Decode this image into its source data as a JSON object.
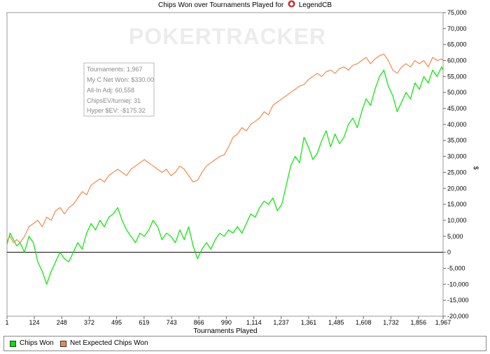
{
  "header": {
    "title": "Chips Won over Tournaments Played for",
    "player": "LegendCB"
  },
  "watermark": "POKERTRACKER",
  "stats_box": {
    "lines": [
      "Tournaments: 1,967",
      "My C Net Won: $330.00",
      "All-In Adj: 60,558",
      "ChipsEV/turniej: 31",
      "Hyper $EV: -$175.32"
    ]
  },
  "legend": [
    {
      "label": "Chips Won",
      "color": "#00e600"
    },
    {
      "label": "Net Expected Chips Won",
      "color": "#f08a4b"
    }
  ],
  "chart_data": {
    "type": "line",
    "title": "Chips Won over Tournaments Played for LegendCB",
    "xlabel": "Tournaments Played",
    "ylabel": "$",
    "xlim": [
      1,
      1967
    ],
    "ylim": [
      -20000,
      75000
    ],
    "x_ticks": [
      "1",
      "124",
      "248",
      "372",
      "495",
      "619",
      "743",
      "866",
      "990",
      "1,114",
      "1,237",
      "1,361",
      "1,485",
      "1,608",
      "1,732",
      "1,856",
      "1,967"
    ],
    "x_tick_values": [
      1,
      124,
      248,
      372,
      495,
      619,
      743,
      866,
      990,
      1114,
      1237,
      1361,
      1485,
      1608,
      1732,
      1856,
      1967
    ],
    "y_ticks": [
      "-20,000",
      "-15,000",
      "-10,000",
      "-5,000",
      "0",
      "5,000",
      "10,000",
      "15,000",
      "20,000",
      "25,000",
      "30,000",
      "35,000",
      "40,000",
      "45,000",
      "50,000",
      "55,000",
      "60,000",
      "65,000",
      "70,000",
      "75,000"
    ],
    "y_tick_values": [
      -20000,
      -15000,
      -10000,
      -5000,
      0,
      5000,
      10000,
      15000,
      20000,
      25000,
      30000,
      35000,
      40000,
      45000,
      50000,
      55000,
      60000,
      65000,
      70000,
      75000
    ],
    "series": [
      {
        "name": "Chips Won",
        "color": "#00e600",
        "x": [
          1,
          15,
          30,
          45,
          60,
          80,
          100,
          120,
          140,
          160,
          180,
          200,
          220,
          240,
          260,
          280,
          300,
          320,
          340,
          360,
          380,
          400,
          420,
          440,
          460,
          480,
          500,
          520,
          540,
          560,
          580,
          600,
          620,
          640,
          660,
          680,
          700,
          720,
          740,
          760,
          780,
          800,
          820,
          840,
          860,
          880,
          900,
          920,
          940,
          960,
          980,
          1000,
          1020,
          1040,
          1060,
          1080,
          1100,
          1120,
          1140,
          1160,
          1180,
          1200,
          1220,
          1240,
          1260,
          1280,
          1300,
          1320,
          1340,
          1360,
          1380,
          1400,
          1420,
          1440,
          1460,
          1480,
          1500,
          1520,
          1540,
          1560,
          1580,
          1600,
          1620,
          1640,
          1660,
          1680,
          1700,
          1720,
          1740,
          1760,
          1780,
          1800,
          1820,
          1840,
          1860,
          1880,
          1900,
          1920,
          1940,
          1960,
          1967
        ],
        "values": [
          2500,
          6000,
          4000,
          2000,
          3000,
          0,
          5000,
          3000,
          -3000,
          -6000,
          -10000,
          -6000,
          -3000,
          0,
          -2000,
          -3000,
          0,
          3000,
          1000,
          6000,
          9000,
          7000,
          10000,
          8000,
          11000,
          12000,
          14000,
          10000,
          7000,
          5000,
          3000,
          6000,
          5000,
          7000,
          10000,
          8000,
          4000,
          6000,
          5000,
          3000,
          7000,
          4000,
          8000,
          2000,
          -2000,
          1000,
          3000,
          1000,
          4000,
          6000,
          5000,
          7000,
          6000,
          8000,
          6000,
          9000,
          12000,
          11000,
          14000,
          16000,
          15000,
          17000,
          13000,
          15000,
          21000,
          27000,
          30000,
          28000,
          36000,
          33000,
          29000,
          31000,
          35000,
          38000,
          33000,
          37000,
          34000,
          36000,
          40000,
          42000,
          39000,
          44000,
          48000,
          46000,
          51000,
          55000,
          57000,
          52000,
          49000,
          44000,
          47000,
          50000,
          48000,
          53000,
          51000,
          55000,
          53000,
          57000,
          55000,
          58000,
          57000
        ]
      },
      {
        "name": "Net Expected Chips Won",
        "color": "#f08a4b",
        "x": [
          1,
          15,
          30,
          45,
          60,
          80,
          100,
          120,
          140,
          160,
          180,
          200,
          220,
          240,
          260,
          280,
          300,
          320,
          340,
          360,
          380,
          400,
          420,
          440,
          460,
          480,
          500,
          520,
          540,
          560,
          580,
          600,
          620,
          640,
          660,
          680,
          700,
          720,
          740,
          760,
          780,
          800,
          820,
          840,
          860,
          880,
          900,
          920,
          940,
          960,
          980,
          1000,
          1020,
          1040,
          1060,
          1080,
          1100,
          1120,
          1140,
          1160,
          1180,
          1200,
          1220,
          1240,
          1260,
          1280,
          1300,
          1320,
          1340,
          1360,
          1380,
          1400,
          1420,
          1440,
          1460,
          1480,
          1500,
          1520,
          1540,
          1560,
          1580,
          1600,
          1620,
          1640,
          1660,
          1680,
          1700,
          1720,
          1740,
          1760,
          1780,
          1800,
          1820,
          1840,
          1860,
          1880,
          1900,
          1920,
          1940,
          1960,
          1967
        ],
        "values": [
          3500,
          5000,
          3000,
          4000,
          3000,
          5000,
          8000,
          9000,
          10000,
          8000,
          11000,
          10000,
          13000,
          14000,
          12000,
          14000,
          15000,
          17000,
          19000,
          18000,
          21000,
          22000,
          23000,
          22000,
          24000,
          25000,
          26000,
          25000,
          24000,
          26000,
          27000,
          28000,
          29000,
          28000,
          27000,
          26000,
          25000,
          26000,
          24000,
          25000,
          27000,
          26000,
          24000,
          22000,
          22500,
          25000,
          27000,
          28000,
          29000,
          30000,
          30500,
          33000,
          36000,
          37000,
          39000,
          38000,
          40000,
          41000,
          42000,
          44000,
          43000,
          46000,
          47000,
          48000,
          49000,
          50000,
          51000,
          52000,
          52500,
          54000,
          55000,
          56000,
          55000,
          56500,
          57000,
          56000,
          57500,
          58000,
          57000,
          58500,
          59000,
          60000,
          61000,
          59000,
          60500,
          61500,
          62000,
          60000,
          57000,
          56000,
          58000,
          59000,
          58000,
          60000,
          59000,
          60000,
          58000,
          61000,
          60000,
          60500,
          60000
        ]
      }
    ]
  }
}
